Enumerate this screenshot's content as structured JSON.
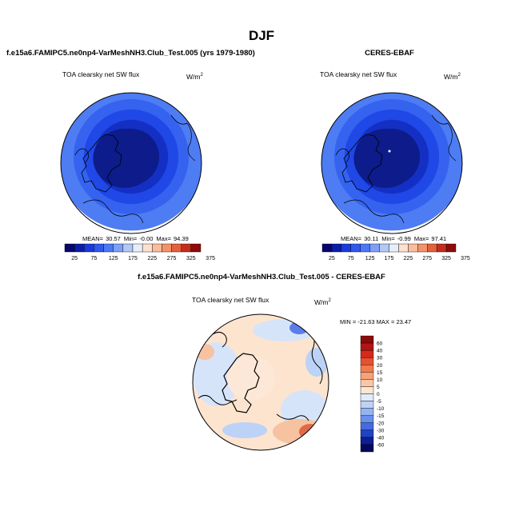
{
  "page": {
    "title": "DJF"
  },
  "panels": [
    {
      "heading": "f.e15a6.FAMIPC5.ne0np4-VarMeshNH3.Club_Test.005 (yrs 1979-1980)",
      "variable": "TOA clearsky net SW flux",
      "units_base": "W/m",
      "units_exp": "2",
      "stats": {
        "mean_label": "MEAN=",
        "mean": "30.57",
        "min_label": "Min=",
        "min": "-0.00",
        "max_label": "Max=",
        "max": "94.39"
      }
    },
    {
      "heading": "CERES-EBAF",
      "variable": "TOA clearsky net SW flux",
      "units_base": "W/m",
      "units_exp": "2",
      "stats": {
        "mean_label": "MEAN=",
        "mean": "30.11",
        "min_label": "Min=",
        "min": "-0.99",
        "max_label": "Max=",
        "max": "97.41"
      }
    }
  ],
  "diff_panel": {
    "heading": "f.e15a6.FAMIPC5.ne0np4-VarMeshNH3.Club_Test.005 - CERES-EBAF",
    "variable": "TOA clearsky net SW flux",
    "units_base": "W/m",
    "units_exp": "2",
    "minmax": "MIN = -21.63 MAX =  23.47"
  },
  "colorbars": {
    "abs": {
      "colors": [
        "#08066e",
        "#0a1ea8",
        "#1a3bdb",
        "#2f58ee",
        "#4c78f4",
        "#7da0f6",
        "#b3c8f7",
        "#e6eefa",
        "#fde0cf",
        "#f9bc9c",
        "#f3936a",
        "#e5603c",
        "#c42d1c",
        "#8e0b0b"
      ],
      "labels": [
        "25",
        "75",
        "125",
        "175",
        "225",
        "275",
        "325",
        "375"
      ]
    },
    "diff": {
      "colors": [
        "#8c0a0a",
        "#b31414",
        "#d42a1c",
        "#e8502f",
        "#f27a4c",
        "#f7a178",
        "#fbc6a4",
        "#fde5d2",
        "#e0ecfb",
        "#bcd2f7",
        "#94b3f2",
        "#6a8fec",
        "#446be0",
        "#2342c2",
        "#0c1f96",
        "#07075e"
      ],
      "labels": [
        "60",
        "40",
        "30",
        "20",
        "15",
        "10",
        "5",
        "0",
        "-5",
        "-10",
        "-15",
        "-20",
        "-30",
        "-40",
        "-60"
      ]
    }
  },
  "map_colors": {
    "abs_levels": [
      "#0d1c8a",
      "#1430c4",
      "#1f48e6",
      "#3563f0",
      "#4e7cf3"
    ],
    "diff_base": "#fce4cf",
    "diff_patches": [
      "#d6e4fa",
      "#f6c2a0",
      "#bcd2f7",
      "#f0a07e",
      "#e06a48",
      "#5a7de8",
      "#fde8d8"
    ]
  }
}
